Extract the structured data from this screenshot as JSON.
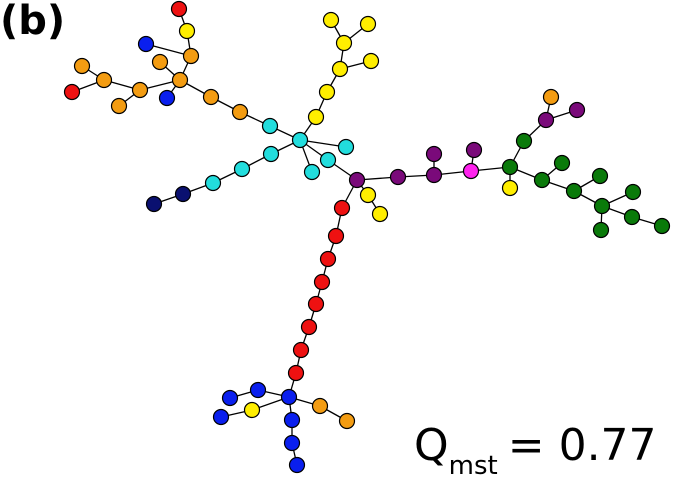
{
  "panel_label": "(b)",
  "metric": {
    "symbol": "Q",
    "subscript": "mst",
    "value_text": "= 0.77"
  }
}
